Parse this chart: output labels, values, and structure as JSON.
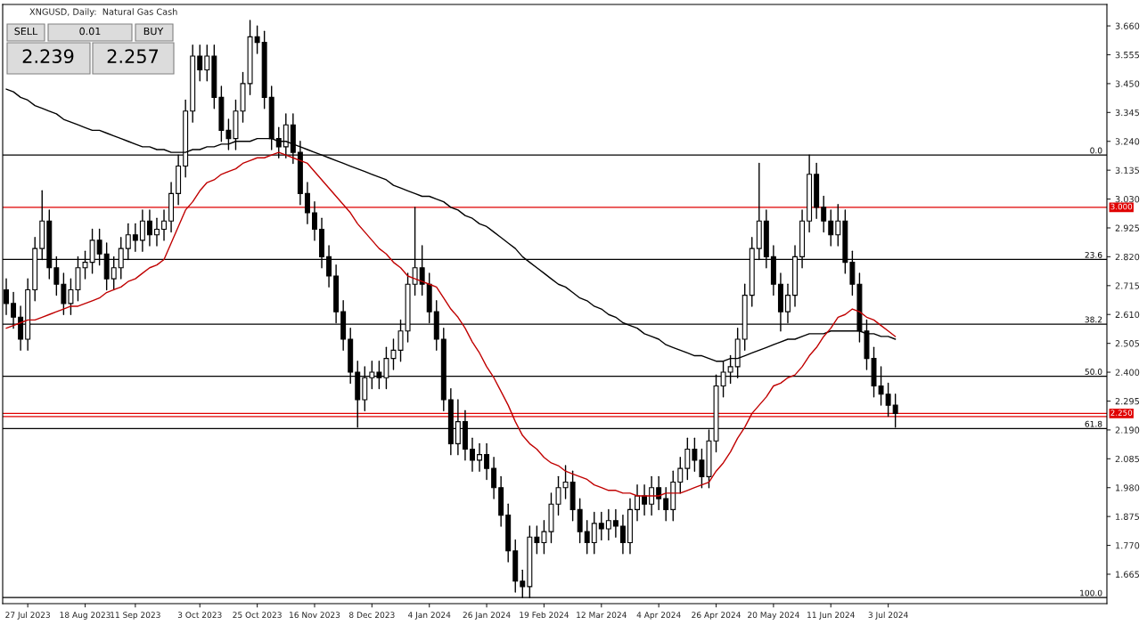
{
  "chart_data": {
    "type": "candlestick",
    "title": "XNGUSD, Daily:  Natural Gas Cash",
    "categories": [
      null,
      null,
      null,
      "27 Jul 2023",
      null,
      null,
      null,
      null,
      null,
      null,
      null,
      "18 Aug 2023",
      null,
      null,
      null,
      null,
      null,
      null,
      "11 Sep 2023",
      null,
      null,
      null,
      null,
      null,
      null,
      null,
      null,
      "3 Oct 2023",
      null,
      null,
      null,
      null,
      null,
      null,
      null,
      "25 Oct 2023",
      null,
      null,
      null,
      null,
      null,
      null,
      null,
      "16 Nov 2023",
      null,
      null,
      null,
      null,
      null,
      null,
      null,
      "8 Dec 2023",
      null,
      null,
      null,
      null,
      null,
      null,
      null,
      "4 Jan 2024",
      null,
      null,
      null,
      null,
      null,
      null,
      null,
      "26 Jan 2024",
      null,
      null,
      null,
      null,
      null,
      null,
      null,
      "19 Feb 2024",
      null,
      null,
      null,
      null,
      null,
      null,
      null,
      "12 Mar 2024",
      null,
      null,
      null,
      null,
      null,
      null,
      null,
      "4 Apr 2024",
      null,
      null,
      null,
      null,
      null,
      null,
      null,
      "26 Apr 2024",
      null,
      null,
      null,
      null,
      null,
      null,
      null,
      "20 May 2024",
      null,
      null,
      null,
      null,
      null,
      null,
      null,
      "11 Jun 2024",
      null,
      null,
      null,
      null,
      null,
      null,
      null,
      "3 Jul 2024",
      null,
      null,
      null,
      null,
      null,
      null,
      null,
      null,
      null,
      null,
      null,
      null,
      null,
      null,
      null,
      null,
      null,
      null,
      null,
      null,
      null,
      null,
      null,
      null,
      null,
      null,
      null,
      null,
      null,
      null
    ],
    "ohlc": [
      [
        2.7,
        2.74,
        2.61,
        2.65
      ],
      [
        2.65,
        2.69,
        2.56,
        2.6
      ],
      [
        2.6,
        2.64,
        2.48,
        2.52
      ],
      [
        2.52,
        2.74,
        2.48,
        2.7
      ],
      [
        2.7,
        2.89,
        2.66,
        2.85
      ],
      [
        2.85,
        3.06,
        2.81,
        2.95
      ],
      [
        2.95,
        2.99,
        2.74,
        2.78
      ],
      [
        2.78,
        2.82,
        2.68,
        2.72
      ],
      [
        2.72,
        2.76,
        2.61,
        2.65
      ],
      [
        2.65,
        2.74,
        2.61,
        2.7
      ],
      [
        2.7,
        2.82,
        2.66,
        2.78
      ],
      [
        2.78,
        2.84,
        2.74,
        2.8
      ],
      [
        2.8,
        2.92,
        2.76,
        2.88
      ],
      [
        2.88,
        2.92,
        2.79,
        2.83
      ],
      [
        2.83,
        2.87,
        2.7,
        2.74
      ],
      [
        2.74,
        2.82,
        2.7,
        2.78
      ],
      [
        2.78,
        2.89,
        2.74,
        2.85
      ],
      [
        2.85,
        2.94,
        2.81,
        2.9
      ],
      [
        2.9,
        2.94,
        2.84,
        2.88
      ],
      [
        2.88,
        2.99,
        2.84,
        2.95
      ],
      [
        2.95,
        2.99,
        2.86,
        2.9
      ],
      [
        2.9,
        2.96,
        2.86,
        2.92
      ],
      [
        2.92,
        2.99,
        2.88,
        2.95
      ],
      [
        2.95,
        3.09,
        2.91,
        3.05
      ],
      [
        3.05,
        3.19,
        3.01,
        3.15
      ],
      [
        3.15,
        3.39,
        3.11,
        3.35
      ],
      [
        3.35,
        3.59,
        3.31,
        3.55
      ],
      [
        3.55,
        3.59,
        3.46,
        3.5
      ],
      [
        3.5,
        3.59,
        3.46,
        3.55
      ],
      [
        3.55,
        3.59,
        3.36,
        3.4
      ],
      [
        3.4,
        3.44,
        3.24,
        3.28
      ],
      [
        3.28,
        3.32,
        3.21,
        3.25
      ],
      [
        3.25,
        3.39,
        3.21,
        3.35
      ],
      [
        3.35,
        3.49,
        3.31,
        3.45
      ],
      [
        3.45,
        3.68,
        3.41,
        3.62
      ],
      [
        3.62,
        3.66,
        3.56,
        3.6
      ],
      [
        3.6,
        3.64,
        3.36,
        3.4
      ],
      [
        3.4,
        3.44,
        3.21,
        3.25
      ],
      [
        3.25,
        3.29,
        3.18,
        3.22
      ],
      [
        3.22,
        3.34,
        3.18,
        3.3
      ],
      [
        3.3,
        3.34,
        3.16,
        3.2
      ],
      [
        3.2,
        3.24,
        3.01,
        3.05
      ],
      [
        3.05,
        3.09,
        2.94,
        2.98
      ],
      [
        2.98,
        3.02,
        2.88,
        2.92
      ],
      [
        2.92,
        2.96,
        2.78,
        2.82
      ],
      [
        2.82,
        2.86,
        2.71,
        2.75
      ],
      [
        2.75,
        2.79,
        2.58,
        2.62
      ],
      [
        2.62,
        2.66,
        2.48,
        2.52
      ],
      [
        2.52,
        2.56,
        2.36,
        2.4
      ],
      [
        2.4,
        2.44,
        2.2,
        2.3
      ],
      [
        2.3,
        2.42,
        2.26,
        2.38
      ],
      [
        2.38,
        2.44,
        2.34,
        2.4
      ],
      [
        2.4,
        2.44,
        2.34,
        2.38
      ],
      [
        2.38,
        2.49,
        2.34,
        2.45
      ],
      [
        2.45,
        2.52,
        2.41,
        2.48
      ],
      [
        2.48,
        2.59,
        2.44,
        2.55
      ],
      [
        2.55,
        2.76,
        2.51,
        2.72
      ],
      [
        2.72,
        3.0,
        2.68,
        2.78
      ],
      [
        2.78,
        2.86,
        2.68,
        2.72
      ],
      [
        2.72,
        2.76,
        2.58,
        2.62
      ],
      [
        2.62,
        2.66,
        2.48,
        2.52
      ],
      [
        2.52,
        2.56,
        2.26,
        2.3
      ],
      [
        2.3,
        2.34,
        2.1,
        2.14
      ],
      [
        2.14,
        2.3,
        2.1,
        2.22
      ],
      [
        2.22,
        2.26,
        2.08,
        2.12
      ],
      [
        2.12,
        2.16,
        2.04,
        2.08
      ],
      [
        2.08,
        2.14,
        2.04,
        2.1
      ],
      [
        2.1,
        2.14,
        2.01,
        2.05
      ],
      [
        2.05,
        2.09,
        1.94,
        1.98
      ],
      [
        1.98,
        2.02,
        1.84,
        1.88
      ],
      [
        1.88,
        1.92,
        1.71,
        1.75
      ],
      [
        1.75,
        1.79,
        1.6,
        1.64
      ],
      [
        1.64,
        1.68,
        1.58,
        1.62
      ],
      [
        1.62,
        1.84,
        1.58,
        1.8
      ],
      [
        1.8,
        1.84,
        1.74,
        1.78
      ],
      [
        1.78,
        1.86,
        1.74,
        1.82
      ],
      [
        1.82,
        1.96,
        1.78,
        1.92
      ],
      [
        1.92,
        2.02,
        1.88,
        1.98
      ],
      [
        1.98,
        2.06,
        1.94,
        2.0
      ],
      [
        2.0,
        2.04,
        1.86,
        1.9
      ],
      [
        1.9,
        1.94,
        1.78,
        1.82
      ],
      [
        1.82,
        1.86,
        1.74,
        1.78
      ],
      [
        1.78,
        1.89,
        1.74,
        1.85
      ],
      [
        1.85,
        1.89,
        1.79,
        1.83
      ],
      [
        1.83,
        1.9,
        1.79,
        1.86
      ],
      [
        1.86,
        1.9,
        1.8,
        1.84
      ],
      [
        1.84,
        1.88,
        1.74,
        1.78
      ],
      [
        1.78,
        1.94,
        1.74,
        1.9
      ],
      [
        1.9,
        1.99,
        1.86,
        1.95
      ],
      [
        1.95,
        1.99,
        1.88,
        1.92
      ],
      [
        1.92,
        2.02,
        1.88,
        1.98
      ],
      [
        1.98,
        2.02,
        1.9,
        1.94
      ],
      [
        1.94,
        1.98,
        1.86,
        1.9
      ],
      [
        1.9,
        2.04,
        1.86,
        2.0
      ],
      [
        2.0,
        2.09,
        1.96,
        2.05
      ],
      [
        2.05,
        2.16,
        2.01,
        2.12
      ],
      [
        2.12,
        2.16,
        2.04,
        2.08
      ],
      [
        2.08,
        2.12,
        1.98,
        2.02
      ],
      [
        2.02,
        2.19,
        1.98,
        2.15
      ],
      [
        2.15,
        2.39,
        2.11,
        2.35
      ],
      [
        2.35,
        2.44,
        2.31,
        2.4
      ],
      [
        2.4,
        2.46,
        2.36,
        2.42
      ],
      [
        2.42,
        2.56,
        2.38,
        2.52
      ],
      [
        2.52,
        2.72,
        2.48,
        2.68
      ],
      [
        2.68,
        2.89,
        2.64,
        2.85
      ],
      [
        2.85,
        3.16,
        2.81,
        2.95
      ],
      [
        2.95,
        2.99,
        2.78,
        2.82
      ],
      [
        2.82,
        2.86,
        2.68,
        2.72
      ],
      [
        2.72,
        2.76,
        2.55,
        2.62
      ],
      [
        2.62,
        2.72,
        2.58,
        2.68
      ],
      [
        2.68,
        2.86,
        2.64,
        2.82
      ],
      [
        2.82,
        2.99,
        2.78,
        2.95
      ],
      [
        2.95,
        3.19,
        2.91,
        3.12
      ],
      [
        3.12,
        3.16,
        2.96,
        3.0
      ],
      [
        3.0,
        3.04,
        2.91,
        2.95
      ],
      [
        2.95,
        2.99,
        2.86,
        2.9
      ],
      [
        2.9,
        3.01,
        2.86,
        2.95
      ],
      [
        2.95,
        2.99,
        2.76,
        2.8
      ],
      [
        2.8,
        2.84,
        2.68,
        2.72
      ],
      [
        2.72,
        2.76,
        2.51,
        2.55
      ],
      [
        2.55,
        2.59,
        2.41,
        2.45
      ],
      [
        2.45,
        2.49,
        2.31,
        2.35
      ],
      [
        2.35,
        2.42,
        2.28,
        2.32
      ],
      [
        2.32,
        2.36,
        2.24,
        2.28
      ],
      [
        2.28,
        2.32,
        2.2,
        2.25
      ],
      null,
      null,
      null,
      null,
      null,
      null,
      null,
      null,
      null,
      null,
      null,
      null,
      null,
      null,
      null,
      null,
      null,
      null,
      null,
      null,
      null,
      null,
      null,
      null,
      null,
      null,
      null,
      null,
      null
    ],
    "series": [
      {
        "type": "line",
        "color": "#000000",
        "values": [
          3.43,
          3.42,
          3.4,
          3.39,
          3.37,
          3.36,
          3.35,
          3.34,
          3.32,
          3.31,
          3.3,
          3.29,
          3.28,
          3.28,
          3.27,
          3.26,
          3.25,
          3.24,
          3.23,
          3.22,
          3.22,
          3.21,
          3.21,
          3.2,
          3.2,
          3.2,
          3.21,
          3.21,
          3.22,
          3.22,
          3.23,
          3.23,
          3.24,
          3.24,
          3.24,
          3.25,
          3.25,
          3.25,
          3.24,
          3.24,
          3.23,
          3.22,
          3.21,
          3.2,
          3.19,
          3.18,
          3.17,
          3.16,
          3.15,
          3.14,
          3.13,
          3.12,
          3.11,
          3.1,
          3.08,
          3.07,
          3.06,
          3.05,
          3.04,
          3.04,
          3.03,
          3.02,
          3.0,
          2.99,
          2.97,
          2.96,
          2.94,
          2.93,
          2.91,
          2.89,
          2.87,
          2.85,
          2.82,
          2.8,
          2.78,
          2.76,
          2.74,
          2.72,
          2.71,
          2.69,
          2.67,
          2.66,
          2.64,
          2.63,
          2.61,
          2.6,
          2.58,
          2.57,
          2.56,
          2.54,
          2.53,
          2.52,
          2.5,
          2.49,
          2.48,
          2.47,
          2.46,
          2.46,
          2.45,
          2.44,
          2.44,
          2.45,
          2.45,
          2.46,
          2.47,
          2.48,
          2.49,
          2.5,
          2.51,
          2.52,
          2.52,
          2.53,
          2.54,
          2.54,
          2.54,
          2.55,
          2.55,
          2.55,
          2.55,
          2.55,
          2.54,
          2.54,
          2.53,
          2.53,
          2.52,
          null,
          null,
          null,
          null,
          null,
          null,
          null,
          null,
          null,
          null,
          null,
          null,
          null,
          null,
          null,
          null,
          null,
          null,
          null,
          null,
          null,
          null,
          null,
          null,
          null,
          null,
          null,
          null,
          null
        ]
      },
      {
        "type": "line",
        "color": "#c00000",
        "values": [
          2.56,
          2.57,
          2.58,
          2.59,
          2.59,
          2.6,
          2.61,
          2.62,
          2.63,
          2.64,
          2.64,
          2.65,
          2.66,
          2.67,
          2.69,
          2.7,
          2.71,
          2.73,
          2.74,
          2.76,
          2.78,
          2.79,
          2.81,
          2.87,
          2.93,
          2.99,
          3.02,
          3.06,
          3.09,
          3.1,
          3.12,
          3.13,
          3.14,
          3.16,
          3.17,
          3.18,
          3.18,
          3.19,
          3.2,
          3.19,
          3.18,
          3.17,
          3.16,
          3.13,
          3.1,
          3.07,
          3.04,
          3.01,
          2.98,
          2.94,
          2.91,
          2.88,
          2.85,
          2.83,
          2.8,
          2.78,
          2.75,
          2.74,
          2.73,
          2.72,
          2.71,
          2.67,
          2.63,
          2.6,
          2.56,
          2.51,
          2.47,
          2.42,
          2.38,
          2.33,
          2.28,
          2.22,
          2.17,
          2.14,
          2.12,
          2.09,
          2.07,
          2.06,
          2.04,
          2.03,
          2.02,
          2.01,
          1.99,
          1.98,
          1.97,
          1.97,
          1.96,
          1.96,
          1.95,
          1.95,
          1.95,
          1.95,
          1.96,
          1.96,
          1.96,
          1.97,
          1.98,
          1.99,
          2.0,
          2.04,
          2.07,
          2.11,
          2.16,
          2.2,
          2.25,
          2.28,
          2.31,
          2.35,
          2.36,
          2.38,
          2.39,
          2.42,
          2.46,
          2.49,
          2.53,
          2.56,
          2.6,
          2.61,
          2.63,
          2.62,
          2.6,
          2.59,
          2.57,
          2.55,
          2.53,
          null,
          null,
          null,
          null,
          null,
          null,
          null,
          null,
          null,
          null,
          null,
          null,
          null,
          null,
          null,
          null,
          null,
          null,
          null,
          null,
          null,
          null,
          null,
          null,
          null,
          null,
          null,
          null,
          null
        ]
      }
    ],
    "ylim": [
      1.558,
      3.738
    ],
    "yticks": [
      {
        "value": 1.665,
        "label": "1.665"
      },
      {
        "value": 1.77,
        "label": "1.770"
      },
      {
        "value": 1.875,
        "label": "1.875"
      },
      {
        "value": 1.98,
        "label": "1.980"
      },
      {
        "value": 2.085,
        "label": "2.085"
      },
      {
        "value": 2.19,
        "label": "2.190"
      },
      {
        "value": 2.295,
        "label": "2.295"
      },
      {
        "value": 2.4,
        "label": "2.400"
      },
      {
        "value": 2.505,
        "label": "2.505"
      },
      {
        "value": 2.61,
        "label": "2.610"
      },
      {
        "value": 2.715,
        "label": "2.715"
      },
      {
        "value": 2.82,
        "label": "2.820"
      },
      {
        "value": 2.925,
        "label": "2.925"
      },
      {
        "value": 3.03,
        "label": "3.030"
      },
      {
        "value": 3.135,
        "label": "3.135"
      },
      {
        "value": 3.24,
        "label": "3.240"
      },
      {
        "value": 3.345,
        "label": "3.345"
      },
      {
        "value": 3.45,
        "label": "3.450"
      },
      {
        "value": 3.555,
        "label": "3.555"
      },
      {
        "value": 3.66,
        "label": "3.660"
      }
    ],
    "ref_lines": [
      {
        "axis": "y",
        "value": 3.0,
        "label": "3.000",
        "color": "#e00000"
      },
      {
        "axis": "y",
        "value": 2.25,
        "label": "2.250",
        "color": "#e00000"
      },
      {
        "axis": "y",
        "value": 2.239,
        "label": null,
        "color": "#e00000"
      },
      {
        "axis": "y",
        "value": 3.19,
        "color": "#000000"
      },
      {
        "axis": "y",
        "value": 2.81,
        "color": "#000000"
      },
      {
        "axis": "y",
        "value": 2.575,
        "color": "#000000"
      },
      {
        "axis": "y",
        "value": 2.385,
        "color": "#000000"
      },
      {
        "axis": "y",
        "value": 2.195,
        "color": "#000000"
      },
      {
        "axis": "y",
        "value": 1.58,
        "color": "#000000"
      }
    ],
    "annotations": [
      "SELL",
      "0.01",
      "BUY",
      "2.239",
      "2.257",
      {
        "text": "0.0",
        "y": 3.19
      },
      {
        "text": "23.6",
        "y": 2.81
      },
      {
        "text": "38.2",
        "y": 2.575
      },
      {
        "text": "50.0",
        "y": 2.385
      },
      {
        "text": "61.8",
        "y": 2.195
      },
      {
        "text": "100.0",
        "y": 1.58
      }
    ]
  }
}
